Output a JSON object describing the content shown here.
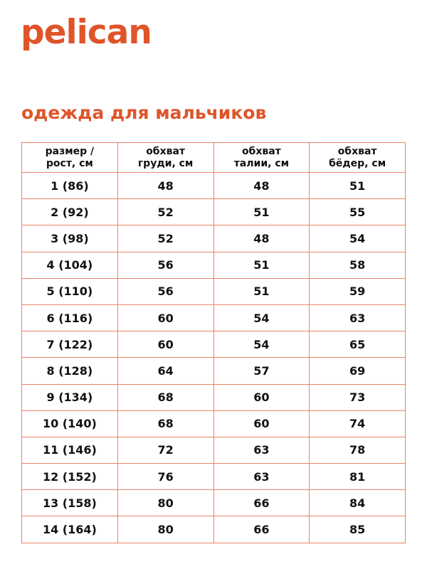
{
  "logo": "pelican",
  "title": "одежда для мальчиков",
  "table": {
    "headers": [
      [
        "размер /",
        "рост, см"
      ],
      [
        "обхват",
        "груди, см"
      ],
      [
        "обхват",
        "талии, см"
      ],
      [
        "обхват",
        "бёдер, см"
      ]
    ],
    "rows": [
      [
        "1 (86)",
        "48",
        "48",
        "51"
      ],
      [
        "2 (92)",
        "52",
        "51",
        "55"
      ],
      [
        "3 (98)",
        "52",
        "48",
        "54"
      ],
      [
        "4 (104)",
        "56",
        "51",
        "58"
      ],
      [
        "5 (110)",
        "56",
        "51",
        "59"
      ],
      [
        "6 (116)",
        "60",
        "54",
        "63"
      ],
      [
        "7 (122)",
        "60",
        "54",
        "65"
      ],
      [
        "8 (128)",
        "64",
        "57",
        "69"
      ],
      [
        "9 (134)",
        "68",
        "60",
        "73"
      ],
      [
        "10 (140)",
        "68",
        "60",
        "74"
      ],
      [
        "11 (146)",
        "72",
        "63",
        "78"
      ],
      [
        "12 (152)",
        "76",
        "63",
        "81"
      ],
      [
        "13 (158)",
        "80",
        "66",
        "84"
      ],
      [
        "14 (164)",
        "80",
        "66",
        "85"
      ]
    ]
  },
  "colors": {
    "accent": "#e0542a",
    "border": "#e9826a"
  }
}
